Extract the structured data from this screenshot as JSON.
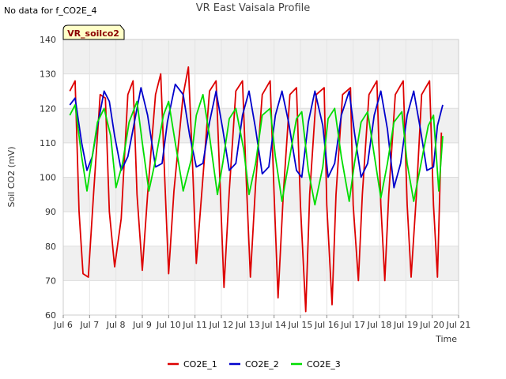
{
  "header": {
    "no_data_text": "No data for f_CO2E_4",
    "title": "VR East Vaisala Profile"
  },
  "chart_data": {
    "type": "line",
    "title": "VR East Vaisala Profile",
    "xlabel": "Time",
    "ylabel": "Soil CO2 (mV)",
    "badge": "VR_soilco2",
    "xlim": [
      6,
      21
    ],
    "ylim": [
      60,
      140
    ],
    "x_ticks": [
      {
        "value": 6,
        "label": "Jul 6"
      },
      {
        "value": 7,
        "label": "Jul 7"
      },
      {
        "value": 8,
        "label": "Jul 8"
      },
      {
        "value": 9,
        "label": "Jul 9"
      },
      {
        "value": 10,
        "label": "Jul 10"
      },
      {
        "value": 11,
        "label": "Jul 11"
      },
      {
        "value": 12,
        "label": "Jul 12"
      },
      {
        "value": 13,
        "label": "Jul 13"
      },
      {
        "value": 14,
        "label": "Jul 14"
      },
      {
        "value": 15,
        "label": "Jul 15"
      },
      {
        "value": 16,
        "label": "Jul 16"
      },
      {
        "value": 17,
        "label": "Jul 17"
      },
      {
        "value": 18,
        "label": "Jul 18"
      },
      {
        "value": 19,
        "label": "Jul 19"
      },
      {
        "value": 20,
        "label": "Jul 20"
      },
      {
        "value": 21,
        "label": "Jul 21"
      }
    ],
    "y_ticks": [
      60,
      70,
      80,
      90,
      100,
      110,
      120,
      130,
      140
    ],
    "grid": true,
    "legend_position": "bottom",
    "series": [
      {
        "name": "CO2E_1",
        "color": "#dd0000",
        "x": [
          6.25,
          6.45,
          6.6,
          6.75,
          6.95,
          7.15,
          7.4,
          7.6,
          7.75,
          7.95,
          8.2,
          8.45,
          8.65,
          8.8,
          9.0,
          9.2,
          9.5,
          9.7,
          9.85,
          10.0,
          10.2,
          10.55,
          10.75,
          10.9,
          11.05,
          11.3,
          11.55,
          11.8,
          11.95,
          12.1,
          12.3,
          12.55,
          12.8,
          12.95,
          13.1,
          13.3,
          13.55,
          13.85,
          14.0,
          14.15,
          14.35,
          14.6,
          14.85,
          15.0,
          15.2,
          15.35,
          15.6,
          15.9,
          16.0,
          16.2,
          16.35,
          16.6,
          16.9,
          17.0,
          17.2,
          17.35,
          17.6,
          17.9,
          18.05,
          18.2,
          18.35,
          18.6,
          18.9,
          19.05,
          19.2,
          19.4,
          19.6,
          19.9,
          20.05,
          20.2,
          20.35
        ],
        "y": [
          125,
          128,
          90,
          72,
          71,
          95,
          124,
          123,
          90,
          74,
          88,
          124,
          128,
          95,
          73,
          95,
          124,
          130,
          100,
          72,
          96,
          124,
          132,
          105,
          75,
          100,
          125,
          128,
          98,
          68,
          96,
          125,
          128,
          98,
          71,
          98,
          124,
          128,
          95,
          65,
          95,
          124,
          126,
          92,
          61,
          95,
          124,
          126,
          92,
          63,
          95,
          124,
          126,
          92,
          70,
          95,
          124,
          128,
          92,
          70,
          95,
          124,
          128,
          92,
          71,
          95,
          124,
          128,
          92,
          71,
          113
        ]
      },
      {
        "name": "CO2E_2",
        "color": "#0000cc",
        "x": [
          6.25,
          6.45,
          6.7,
          6.9,
          7.1,
          7.3,
          7.55,
          7.75,
          7.95,
          8.2,
          8.45,
          8.7,
          8.95,
          9.2,
          9.5,
          9.75,
          9.95,
          10.25,
          10.55,
          10.8,
          11.05,
          11.3,
          11.55,
          11.8,
          12.05,
          12.3,
          12.55,
          12.8,
          13.05,
          13.3,
          13.55,
          13.8,
          14.05,
          14.3,
          14.55,
          14.85,
          15.05,
          15.3,
          15.55,
          15.85,
          16.05,
          16.3,
          16.55,
          16.85,
          17.05,
          17.3,
          17.55,
          17.8,
          18.05,
          18.3,
          18.55,
          18.8,
          19.05,
          19.3,
          19.55,
          19.8,
          20.05,
          20.2,
          20.4
        ],
        "y": [
          121,
          123,
          110,
          102,
          106,
          115,
          125,
          122,
          112,
          102,
          106,
          116,
          126,
          118,
          103,
          104,
          116,
          127,
          124,
          112,
          103,
          104,
          116,
          125,
          114,
          102,
          104,
          118,
          125,
          114,
          101,
          103,
          118,
          125,
          116,
          102,
          100,
          116,
          125,
          115,
          100,
          104,
          118,
          125,
          113,
          100,
          104,
          118,
          125,
          114,
          97,
          104,
          118,
          125,
          114,
          102,
          103,
          115,
          121
        ]
      },
      {
        "name": "CO2E_3",
        "color": "#00dd00",
        "x": [
          6.25,
          6.45,
          6.7,
          6.9,
          7.1,
          7.3,
          7.55,
          7.8,
          8.0,
          8.25,
          8.5,
          8.8,
          9.0,
          9.25,
          9.5,
          9.8,
          10.0,
          10.25,
          10.55,
          10.85,
          11.05,
          11.3,
          11.55,
          11.85,
          12.05,
          12.3,
          12.55,
          12.85,
          13.05,
          13.3,
          13.55,
          13.85,
          14.05,
          14.3,
          14.55,
          14.85,
          15.05,
          15.3,
          15.55,
          15.85,
          16.05,
          16.3,
          16.55,
          16.85,
          17.05,
          17.3,
          17.55,
          17.85,
          18.05,
          18.3,
          18.55,
          18.85,
          19.05,
          19.3,
          19.55,
          19.85,
          20.05,
          20.25,
          20.4
        ],
        "y": [
          118,
          121,
          106,
          96,
          106,
          116,
          120,
          112,
          97,
          104,
          116,
          122,
          110,
          96,
          105,
          118,
          122,
          110,
          96,
          105,
          118,
          124,
          112,
          95,
          104,
          117,
          120,
          108,
          95,
          104,
          118,
          120,
          106,
          93,
          104,
          117,
          119,
          102,
          92,
          103,
          117,
          120,
          106,
          93,
          104,
          116,
          119,
          104,
          94,
          104,
          116,
          119,
          104,
          93,
          103,
          115,
          118,
          96,
          112
        ]
      }
    ]
  }
}
